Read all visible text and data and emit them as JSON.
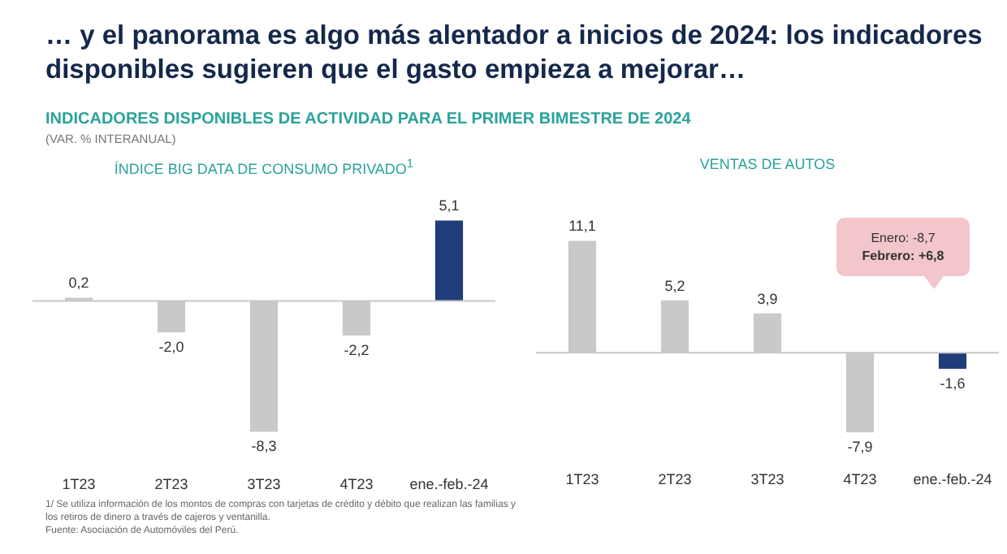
{
  "chart_data": [
    {
      "type": "bar",
      "title": "ÍNDICE BIG DATA DE CONSUMO PRIVADO$^{1}$",
      "categories": [
        "1T23",
        "2T23",
        "3T23",
        "4T23",
        "ene.-feb.-24"
      ],
      "values": [
        0.2,
        -2.0,
        -8.3,
        -2.2,
        5.1
      ],
      "colors": [
        "#c9c9c9",
        "#c9c9c9",
        "#c9c9c9",
        "#c9c9c9",
        "#1f3d7a"
      ],
      "value_labels": [
        "0,2",
        "-2,0",
        "-8,3",
        "-2,2",
        "5,1"
      ],
      "annotations": [
        "… y el panorama es algo más alentador a inicios de 2024: los indicadores disponibles sugieren que el gasto empieza a mejorar…",
        "INDICADORES DISPONIBLES DE ACTIVIDAD PARA EL PRIMER BIMESTRE DE 2024",
        "(VAR. % INTERANUAL)",
        "1/ Se utiliza información de los montos de compras con tarjetas de crédito y débito que realizan las familias y los retiros de dinero a través de cajeros y ventanilla.",
        "Fuente: Asociación de Automóviles del Perú."
      ]
    },
    {
      "type": "bar",
      "title": "VENTAS DE AUTOS",
      "categories": [
        "1T23",
        "2T23",
        "3T23",
        "4T23",
        "ene.-feb.-24"
      ],
      "values": [
        11.1,
        5.2,
        3.9,
        -7.9,
        -1.6
      ],
      "colors": [
        "#c9c9c9",
        "#c9c9c9",
        "#c9c9c9",
        "#c9c9c9",
        "#1f3d7a"
      ],
      "value_labels": [
        "11,1",
        "5,2",
        "3,9",
        "-7,9",
        "-1,6"
      ],
      "annotations": [
        "Enero: -8,7",
        "Febrero: +6,8"
      ]
    }
  ]
}
